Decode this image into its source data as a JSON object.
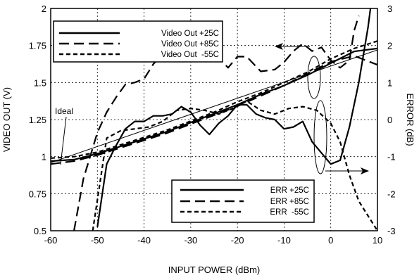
{
  "chart_data": {
    "type": "line",
    "xlabel": "INPUT POWER (dBm)",
    "ylabel": "VIDEO OUT (V)",
    "y2label": "ERROR  (dB)",
    "xlim": [
      -60,
      10
    ],
    "ylim": [
      0.5,
      2
    ],
    "y2lim": [
      -3,
      3
    ],
    "x_ticks": [
      "-60",
      "-50",
      "-40",
      "-30",
      "-20",
      "-10",
      "0",
      "10"
    ],
    "y_ticks": [
      "0.5",
      "0.75",
      "1",
      "1.25",
      "1.5",
      "1.75",
      "2"
    ],
    "y2_ticks": [
      "-3",
      "-2",
      "-1",
      "0",
      "1",
      "2",
      "3"
    ],
    "grid": true,
    "legend_video": {
      "position": "top-left",
      "entries": [
        "Video Out +25C",
        "Video Out +85C",
        "Video Out  -55C"
      ]
    },
    "legend_error": {
      "position": "bottom-right",
      "entries": [
        "ERR +25C",
        "ERR +85C",
        "ERR  -55C"
      ]
    },
    "annotations": [
      "Ideal"
    ],
    "series": [
      {
        "name": "Video Out +25C",
        "axis": "left",
        "style": "solid",
        "x": [
          -60,
          -55,
          -50,
          -45,
          -40,
          -35,
          -30,
          -25,
          -20,
          -15,
          -10,
          -5,
          0,
          5,
          10
        ],
        "y": [
          0.97,
          0.98,
          1.02,
          1.07,
          1.12,
          1.17,
          1.23,
          1.29,
          1.35,
          1.42,
          1.48,
          1.55,
          1.63,
          1.71,
          1.73
        ]
      },
      {
        "name": "Video Out +85C",
        "axis": "left",
        "style": "long-dash",
        "x": [
          -60,
          -55,
          -50,
          -45,
          -40,
          -35,
          -30,
          -25,
          -20,
          -15,
          -10,
          -5,
          0,
          5,
          10
        ],
        "y": [
          0.95,
          0.97,
          1.01,
          1.06,
          1.11,
          1.16,
          1.22,
          1.28,
          1.34,
          1.41,
          1.48,
          1.56,
          1.64,
          1.68,
          1.62
        ]
      },
      {
        "name": "Video Out  -55C",
        "axis": "left",
        "style": "short-dash",
        "x": [
          -60,
          -55,
          -50,
          -45,
          -40,
          -35,
          -30,
          -25,
          -20,
          -15,
          -10,
          -5,
          0,
          5,
          10
        ],
        "y": [
          0.99,
          1.0,
          1.03,
          1.08,
          1.13,
          1.18,
          1.24,
          1.3,
          1.37,
          1.43,
          1.5,
          1.57,
          1.66,
          1.73,
          1.78
        ]
      },
      {
        "name": "ERR +25C",
        "axis": "right",
        "style": "solid",
        "x": [
          -50,
          -48,
          -46,
          -44,
          -42,
          -40,
          -38,
          -36,
          -34,
          -32,
          -30,
          -28,
          -26,
          -24,
          -22,
          -20,
          -18,
          -16,
          -14,
          -12,
          -10,
          -8,
          -6,
          -4,
          -2,
          0,
          2,
          4,
          6,
          8,
          8.5
        ],
        "y": [
          -2.9,
          -1.2,
          -0.7,
          -0.25,
          -0.05,
          -0.05,
          0.1,
          0.1,
          0.15,
          0.35,
          0.2,
          -0.15,
          -0.4,
          -0.1,
          0.1,
          0.4,
          0.4,
          0.15,
          0.05,
          0.0,
          -0.25,
          -0.2,
          -0.05,
          -0.6,
          -0.9,
          -1.2,
          -1.1,
          -0.2,
          1.0,
          2.5,
          3.0
        ]
      },
      {
        "name": "ERR +85C",
        "axis": "right",
        "style": "long-dash",
        "x": [
          -55,
          -53,
          -50,
          -48,
          -46,
          -44,
          -42,
          -40,
          -38,
          -35,
          -32,
          -30,
          -28,
          -25,
          -22,
          -20,
          -18,
          -15,
          -12,
          -10,
          -8,
          -6,
          -4,
          -2,
          0,
          2,
          4,
          5,
          6
        ],
        "y": [
          -3.0,
          -1.6,
          -0.35,
          0.2,
          0.6,
          0.95,
          1.0,
          1.1,
          1.5,
          1.9,
          2.0,
          2.05,
          1.95,
          1.8,
          1.4,
          1.7,
          1.7,
          1.3,
          1.35,
          1.55,
          1.85,
          2.05,
          1.85,
          1.95,
          1.6,
          1.4,
          1.6,
          2.4,
          2.8
        ]
      },
      {
        "name": "ERR  -55C",
        "axis": "right",
        "style": "short-dash",
        "x": [
          -51,
          -48,
          -45,
          -42,
          -39,
          -36,
          -33,
          -30,
          -27,
          -24,
          -21,
          -18,
          -15,
          -12,
          -9,
          -6,
          -3,
          0,
          2,
          4,
          6,
          8,
          10
        ],
        "y": [
          -3.0,
          -0.5,
          -0.3,
          -0.25,
          -0.2,
          -0.05,
          0.25,
          0.3,
          0.25,
          0.15,
          0.3,
          0.5,
          0.25,
          0.15,
          0.3,
          0.35,
          0.25,
          -0.1,
          -0.6,
          -1.5,
          -2.2,
          -2.6,
          -3.0
        ]
      },
      {
        "name": "Ideal",
        "axis": "left",
        "style": "thin",
        "x": [
          -60,
          10
        ],
        "y": [
          0.96,
          1.72
        ]
      }
    ]
  }
}
